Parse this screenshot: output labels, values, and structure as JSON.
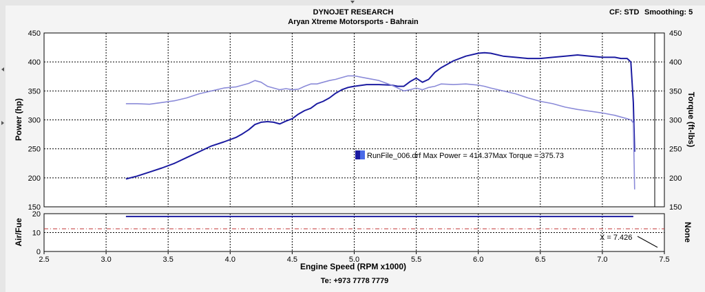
{
  "header": {
    "title": "DYNOJET RESEARCH",
    "subtitle": "Aryan Xtreme Motorsports - Bahrain",
    "cf_label": "CF: STD",
    "smoothing_label": "Smoothing: 5",
    "footer": "Te: +973 7778 7779"
  },
  "chart_data": [
    {
      "type": "line",
      "title": "DYNOJET RESEARCH",
      "subtitle": "Aryan Xtreme Motorsports - Bahrain",
      "xlabel": "Engine Speed (RPM x1000)",
      "ylabel": "Power (hp)",
      "y2label": "Torque (ft-lbs)",
      "xlim": [
        2.5,
        7.5
      ],
      "ylim": [
        150,
        450
      ],
      "y2lim": [
        150,
        450
      ],
      "x_ticks": [
        "2.5",
        "3.0",
        "3.5",
        "4.0",
        "4.5",
        "5.0",
        "5.5",
        "6.0",
        "6.5",
        "7.0",
        "7.5"
      ],
      "y_ticks": [
        "150",
        "200",
        "250",
        "300",
        "350",
        "400",
        "450"
      ],
      "grid": true,
      "legend_text": "RunFile_006.drf Max Power = 414.37Max Torque = 375.73",
      "legend_position": "center",
      "colors": {
        "power": "#1a1aa0",
        "torque": "#8a8ad8"
      },
      "series": [
        {
          "name": "Power",
          "x": [
            3.16,
            3.25,
            3.35,
            3.45,
            3.55,
            3.65,
            3.75,
            3.85,
            3.95,
            4.05,
            4.1,
            4.15,
            4.2,
            4.25,
            4.3,
            4.35,
            4.4,
            4.45,
            4.5,
            4.55,
            4.6,
            4.65,
            4.7,
            4.75,
            4.8,
            4.85,
            4.9,
            4.95,
            5.0,
            5.1,
            5.2,
            5.3,
            5.35,
            5.4,
            5.45,
            5.5,
            5.55,
            5.6,
            5.65,
            5.7,
            5.8,
            5.9,
            6.0,
            6.05,
            6.1,
            6.2,
            6.3,
            6.4,
            6.5,
            6.6,
            6.7,
            6.8,
            6.9,
            7.0,
            7.1,
            7.15,
            7.2,
            7.23,
            7.25,
            7.26
          ],
          "values": [
            198,
            203,
            210,
            217,
            225,
            235,
            245,
            255,
            262,
            270,
            276,
            283,
            292,
            296,
            297,
            296,
            293,
            298,
            302,
            310,
            316,
            320,
            328,
            332,
            338,
            346,
            352,
            356,
            358,
            361,
            361,
            360,
            358,
            358,
            366,
            372,
            365,
            370,
            382,
            390,
            402,
            410,
            415,
            416,
            415,
            410,
            408,
            406,
            406,
            408,
            410,
            412,
            410,
            408,
            408,
            406,
            406,
            400,
            330,
            245
          ]
        },
        {
          "name": "Torque",
          "x": [
            3.16,
            3.25,
            3.35,
            3.45,
            3.55,
            3.65,
            3.75,
            3.85,
            3.95,
            4.05,
            4.1,
            4.15,
            4.2,
            4.25,
            4.3,
            4.35,
            4.4,
            4.45,
            4.5,
            4.55,
            4.6,
            4.65,
            4.7,
            4.75,
            4.8,
            4.85,
            4.9,
            4.95,
            5.0,
            5.1,
            5.2,
            5.3,
            5.4,
            5.45,
            5.5,
            5.55,
            5.6,
            5.65,
            5.7,
            5.8,
            5.9,
            6.0,
            6.05,
            6.1,
            6.2,
            6.3,
            6.4,
            6.5,
            6.6,
            6.7,
            6.8,
            6.9,
            7.0,
            7.1,
            7.15,
            7.2,
            7.23,
            7.25,
            7.26
          ],
          "values": [
            328,
            328,
            327,
            330,
            333,
            338,
            345,
            350,
            355,
            357,
            360,
            363,
            368,
            365,
            358,
            355,
            352,
            354,
            352,
            353,
            358,
            362,
            362,
            365,
            368,
            370,
            373,
            376,
            376,
            372,
            368,
            360,
            350,
            352,
            355,
            352,
            356,
            358,
            362,
            361,
            362,
            360,
            358,
            355,
            350,
            345,
            338,
            332,
            328,
            322,
            318,
            315,
            312,
            308,
            305,
            302,
            300,
            295,
            180
          ]
        }
      ]
    },
    {
      "type": "line",
      "ylabel": "Air/Fue",
      "y2label": "None",
      "xlim": [
        2.5,
        7.5
      ],
      "ylim": [
        0,
        20
      ],
      "y_ticks": [
        "0",
        "10",
        "20"
      ],
      "reference_line": 12,
      "cursor_readout": "X = 7.426",
      "series": [
        {
          "name": "Air/Fuel",
          "x": [
            3.16,
            7.25
          ],
          "values": [
            18.5,
            18.5
          ]
        }
      ]
    }
  ]
}
